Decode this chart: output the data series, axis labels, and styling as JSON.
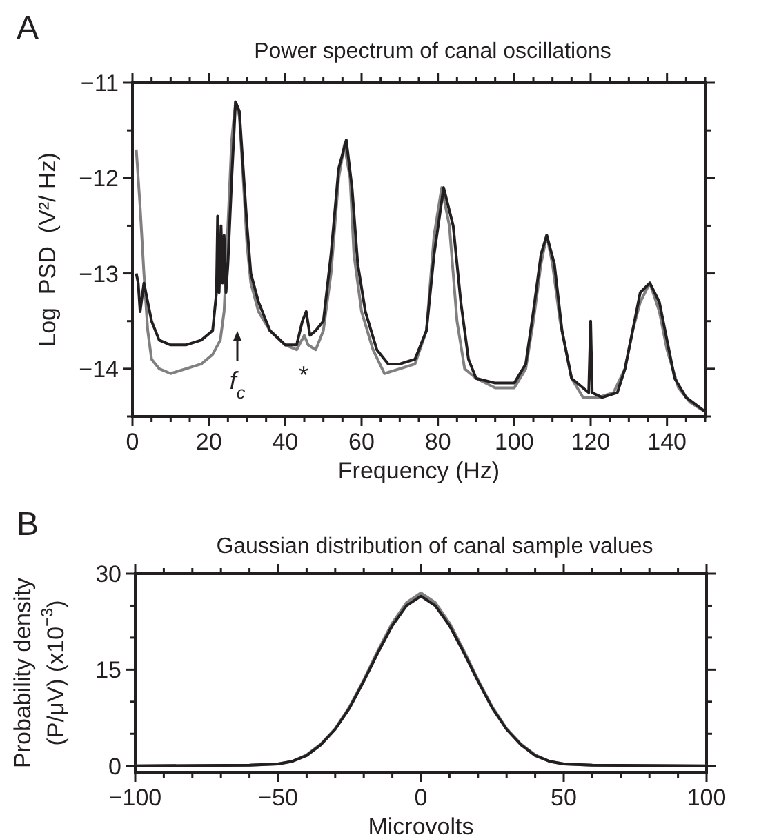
{
  "chart_data": [
    {
      "type": "line",
      "title": "Power spectrum of canal oscillations",
      "xlabel": "Frequency (Hz)",
      "ylabel": "Log  PSD  (V²/ Hz)",
      "xlim": [
        0,
        150
      ],
      "ylim": [
        -14.5,
        -11
      ],
      "xticks": [
        0,
        {
          "value": 5,
          "label": null
        },
        {
          "value": 10,
          "label": null
        },
        {
          "value": 15,
          "label": null
        },
        20,
        {
          "value": 25,
          "label": null
        },
        {
          "value": 30,
          "label": null
        },
        {
          "value": 35,
          "label": null
        },
        40,
        {
          "value": 45,
          "label": null
        },
        {
          "value": 50,
          "label": null
        },
        {
          "value": 55,
          "label": null
        },
        60,
        {
          "value": 65,
          "label": null
        },
        {
          "value": 70,
          "label": null
        },
        {
          "value": 75,
          "label": null
        },
        80,
        {
          "value": 85,
          "label": null
        },
        {
          "value": 90,
          "label": null
        },
        {
          "value": 95,
          "label": null
        },
        100,
        {
          "value": 105,
          "label": null
        },
        {
          "value": 110,
          "label": null
        },
        {
          "value": 115,
          "label": null
        },
        120,
        {
          "value": 125,
          "label": null
        },
        {
          "value": 130,
          "label": null
        },
        {
          "value": 135,
          "label": null
        },
        140,
        {
          "value": 145,
          "label": null
        },
        {
          "value": 150,
          "label": null
        }
      ],
      "yticks": [
        {
          "value": -14.5,
          "label": null
        },
        -14,
        {
          "value": -13.5,
          "label": null
        },
        -13,
        {
          "value": -12.5,
          "label": null
        },
        -12,
        {
          "value": -11.5,
          "label": null
        },
        -11
      ],
      "grid": false,
      "marker": "none",
      "line_style": "solid",
      "series": [
        {
          "color": "#808080",
          "x": [
            1,
            2,
            3,
            4,
            5,
            7,
            10,
            14,
            18,
            21,
            23,
            24,
            25,
            26,
            27,
            28,
            29,
            30,
            31,
            33,
            36,
            40,
            43,
            45,
            46,
            48,
            50,
            52,
            54,
            55.5,
            57,
            58,
            60,
            63,
            66,
            70,
            74,
            77,
            79,
            81,
            83,
            85,
            87,
            90,
            95,
            100,
            103,
            105,
            107,
            108.5,
            110,
            112,
            115,
            118,
            122,
            126,
            129,
            131,
            133,
            135.5,
            138,
            140,
            143,
            146,
            150
          ],
          "values": [
            -11.7,
            -12.3,
            -13.0,
            -13.6,
            -13.9,
            -14.0,
            -14.05,
            -14.0,
            -13.95,
            -13.85,
            -13.7,
            -13.4,
            -12.5,
            -11.6,
            -11.2,
            -11.35,
            -12.0,
            -12.7,
            -13.1,
            -13.4,
            -13.6,
            -13.75,
            -13.8,
            -13.65,
            -13.75,
            -13.8,
            -13.6,
            -13.0,
            -12.0,
            -11.65,
            -12.0,
            -12.8,
            -13.4,
            -13.8,
            -14.05,
            -14.0,
            -13.95,
            -13.6,
            -12.6,
            -12.1,
            -12.5,
            -13.5,
            -14.0,
            -14.1,
            -14.2,
            -14.2,
            -14.0,
            -13.5,
            -12.9,
            -12.6,
            -12.9,
            -13.5,
            -14.1,
            -14.3,
            -14.3,
            -14.25,
            -14.0,
            -13.6,
            -13.3,
            -13.1,
            -13.4,
            -13.8,
            -14.2,
            -14.35,
            -14.45
          ]
        },
        {
          "color": "#231f20",
          "x": [
            1,
            1.5,
            2,
            3,
            4,
            5,
            7,
            10,
            14,
            18,
            21,
            22,
            22.3,
            22.7,
            23.2,
            23.6,
            24,
            24.5,
            25,
            26,
            27,
            28,
            29,
            30,
            31,
            33,
            36,
            40,
            43,
            44.5,
            45.5,
            46.5,
            48,
            50,
            52,
            54,
            56,
            57.5,
            59,
            61,
            64,
            67,
            70,
            74,
            77,
            79,
            81.5,
            84,
            86,
            88,
            90,
            95,
            100,
            103,
            105,
            107,
            108.5,
            110.5,
            112.5,
            115,
            118,
            119.5,
            120,
            120.4,
            123,
            127,
            129,
            131,
            133,
            135.5,
            138,
            140,
            142,
            145,
            150
          ],
          "values": [
            -13.0,
            -13.1,
            -13.4,
            -13.1,
            -13.3,
            -13.5,
            -13.7,
            -13.75,
            -13.75,
            -13.7,
            -13.6,
            -13.2,
            -12.4,
            -13.2,
            -12.5,
            -13.1,
            -12.6,
            -13.2,
            -12.9,
            -12.0,
            -11.2,
            -11.3,
            -11.9,
            -12.5,
            -13.0,
            -13.3,
            -13.6,
            -13.75,
            -13.75,
            -13.5,
            -13.4,
            -13.65,
            -13.6,
            -13.5,
            -12.8,
            -11.9,
            -11.6,
            -12.1,
            -12.9,
            -13.4,
            -13.8,
            -13.95,
            -13.95,
            -13.9,
            -13.6,
            -12.8,
            -12.1,
            -12.5,
            -13.3,
            -13.9,
            -14.1,
            -14.15,
            -14.15,
            -13.95,
            -13.4,
            -12.8,
            -12.6,
            -12.9,
            -13.6,
            -14.1,
            -14.2,
            -14.25,
            -13.5,
            -14.25,
            -14.3,
            -14.25,
            -14.0,
            -13.6,
            -13.2,
            -13.1,
            -13.3,
            -13.7,
            -14.1,
            -14.3,
            -14.45
          ]
        }
      ],
      "annotations": [
        "A",
        "f$_{c}$",
        "*"
      ]
    },
    {
      "type": "line",
      "title": "Gaussian distribution of canal sample values",
      "xlabel": "Microvolts",
      "ylabel": "Probability density\n(P/μV) (x10$^{−3}$)",
      "xlim": [
        -100,
        100
      ],
      "ylim": [
        -1,
        30
      ],
      "xticks": [
        -100,
        {
          "value": -90,
          "label": null
        },
        {
          "value": -80,
          "label": null
        },
        {
          "value": -70,
          "label": null
        },
        {
          "value": -60,
          "label": null
        },
        -50,
        {
          "value": -40,
          "label": null
        },
        {
          "value": -30,
          "label": null
        },
        {
          "value": -20,
          "label": null
        },
        {
          "value": -10,
          "label": null
        },
        0,
        {
          "value": 10,
          "label": null
        },
        {
          "value": 20,
          "label": null
        },
        {
          "value": 30,
          "label": null
        },
        {
          "value": 40,
          "label": null
        },
        50,
        {
          "value": 60,
          "label": null
        },
        {
          "value": 70,
          "label": null
        },
        {
          "value": 80,
          "label": null
        },
        {
          "value": 90,
          "label": null
        },
        100
      ],
      "yticks": [
        0,
        {
          "value": 5,
          "label": null
        },
        {
          "value": 10,
          "label": null
        },
        15,
        {
          "value": 20,
          "label": null
        },
        {
          "value": 25,
          "label": null
        },
        30
      ],
      "grid": false,
      "marker": "none",
      "line_style": "solid",
      "series": [
        {
          "color": "#808080",
          "x": [
            -100,
            -60,
            -50,
            -45,
            -40,
            -35,
            -30,
            -25,
            -20,
            -15,
            -10,
            -5,
            0,
            5,
            10,
            15,
            20,
            25,
            30,
            35,
            40,
            45,
            50,
            60,
            100
          ],
          "values": [
            0,
            0.1,
            0.3,
            0.7,
            1.7,
            3.4,
            5.8,
            9.2,
            13.4,
            18.0,
            22.3,
            25.5,
            27.0,
            25.5,
            22.3,
            18.0,
            13.4,
            9.2,
            5.8,
            3.4,
            1.7,
            0.7,
            0.3,
            0.1,
            0
          ]
        },
        {
          "color": "#231f20",
          "x": [
            -100,
            -60,
            -50,
            -45,
            -40,
            -35,
            -30,
            -25,
            -20,
            -15,
            -10,
            -5,
            0,
            5,
            10,
            15,
            20,
            25,
            30,
            35,
            40,
            45,
            50,
            60,
            100
          ],
          "values": [
            0,
            0.1,
            0.3,
            0.7,
            1.6,
            3.3,
            5.7,
            9.0,
            13.2,
            17.7,
            21.9,
            25.0,
            26.5,
            25.0,
            21.9,
            17.7,
            13.2,
            9.0,
            5.7,
            3.3,
            1.6,
            0.7,
            0.3,
            0.1,
            0
          ]
        }
      ],
      "annotations": [
        "B"
      ]
    }
  ]
}
